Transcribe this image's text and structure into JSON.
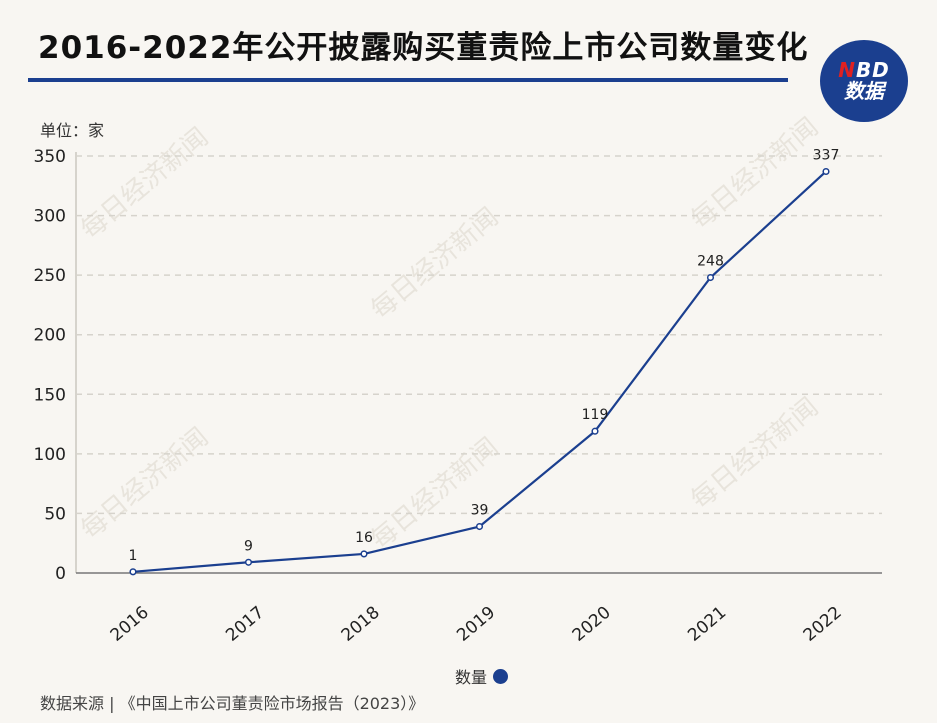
{
  "title": "2016-2022年公开披露购买董责险上市公司数量变化",
  "logo": {
    "top": "NBD",
    "bottom": "数据"
  },
  "unit_label": "单位：家",
  "legend_label": "数量",
  "source": "数据来源 | 《中国上市公司董责险市场报告（2023）》",
  "watermark": "每日经济新闻",
  "colors": {
    "line": "#1b3f8f",
    "accent_red": "#e02020"
  },
  "chart_data": {
    "type": "line",
    "title": "2016-2022年公开披露购买董责险上市公司数量变化",
    "xlabel": "",
    "ylabel": "单位：家",
    "categories": [
      "2016",
      "2017",
      "2018",
      "2019",
      "2020",
      "2021",
      "2022"
    ],
    "series": [
      {
        "name": "数量",
        "values": [
          1,
          9,
          16,
          39,
          119,
          248,
          337
        ]
      }
    ],
    "ylim": [
      0,
      350
    ],
    "yticks": [
      0,
      50,
      100,
      150,
      200,
      250,
      300,
      350
    ],
    "grid": true,
    "legend": "bottom-center"
  }
}
